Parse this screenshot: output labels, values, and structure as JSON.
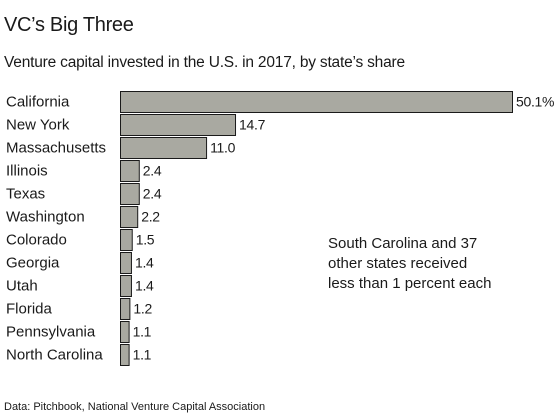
{
  "chart_data": {
    "type": "bar",
    "orientation": "horizontal",
    "title": "VC’s Big Three",
    "subtitle": "Venture capital invested in the U.S. in 2017, by state’s share",
    "categories": [
      "California",
      "New York",
      "Massachusetts",
      "Illinois",
      "Texas",
      "Washington",
      "Colorado",
      "Georgia",
      "Utah",
      "Florida",
      "Pennsylvania",
      "North Carolina"
    ],
    "values": [
      50.1,
      14.7,
      11.0,
      2.4,
      2.4,
      2.2,
      1.5,
      1.4,
      1.4,
      1.2,
      1.1,
      1.1
    ],
    "value_labels": [
      "50.1%",
      "14.7",
      "11.0",
      "2.4",
      "2.4",
      "2.2",
      "1.5",
      "1.4",
      "1.4",
      "1.2",
      "1.1",
      "1.1"
    ],
    "xlim": [
      0,
      50.1
    ],
    "grid": false,
    "legend": "none",
    "bar_color": "#a9a9a1",
    "annotation_lines": [
      "South Carolina and 37",
      "other states received",
      "less than 1 percent each"
    ],
    "source": "Data: Pitchbook, National Venture Capital Association"
  }
}
